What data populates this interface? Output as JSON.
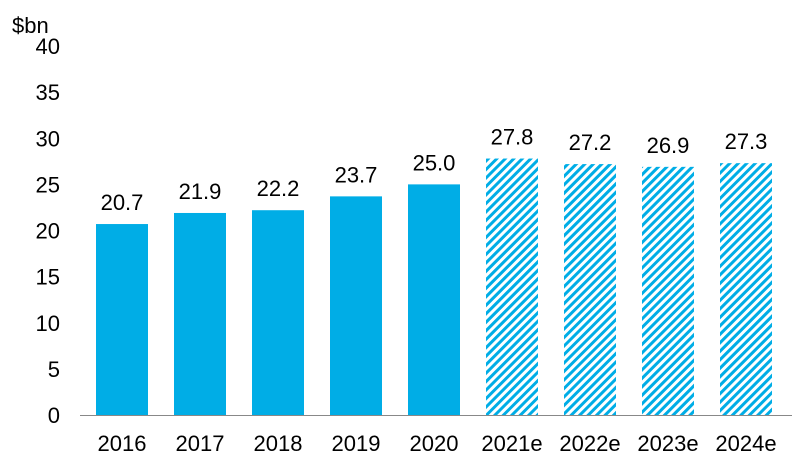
{
  "chart_data": {
    "type": "bar",
    "title": "",
    "ylabel": "$bn",
    "xlabel": "",
    "ylim": [
      0,
      40
    ],
    "yticks": [
      0,
      5,
      10,
      15,
      20,
      25,
      30,
      35,
      40
    ],
    "grid": false,
    "categories": [
      "2016",
      "2017",
      "2018",
      "2019",
      "2020",
      "2021e",
      "2022e",
      "2023e",
      "2024e"
    ],
    "values": [
      20.7,
      21.9,
      22.2,
      23.7,
      25.0,
      27.8,
      27.2,
      26.9,
      27.3
    ],
    "data_labels": [
      "20.7",
      "21.9",
      "22.2",
      "23.7",
      "25.0",
      "27.8",
      "27.2",
      "26.9",
      "27.3"
    ],
    "estimated": [
      false,
      false,
      false,
      false,
      false,
      true,
      true,
      true,
      true
    ],
    "colors": {
      "bar": "#00ADE6",
      "hatch": "#00ADE6"
    }
  }
}
